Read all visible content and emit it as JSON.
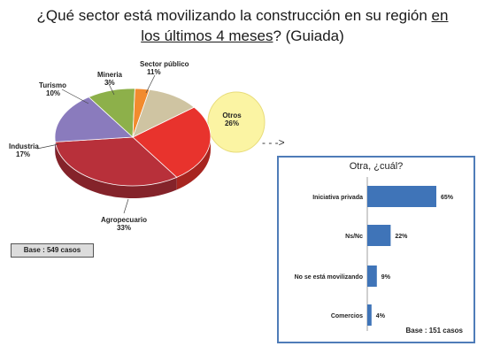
{
  "title": {
    "part1": "¿Qué sector está movilizando la construcción en su región ",
    "part2": "en",
    "part3": "los últimos 4 meses",
    "part4": "? (Guiada)"
  },
  "arrow": "- - ->",
  "base_main": "Base : 549 casos",
  "colors": {
    "agropecuario": "#b8303a",
    "industria": "#8a7bbd",
    "turismo": "#8db04a",
    "mineria": "#f28b2e",
    "sector_publico": "#cfc4a2",
    "otros": "#e8332d",
    "otros_highlight": "#fbf4a3",
    "bars": "#3f74b8",
    "panel_border": "#4f7cb8"
  },
  "chart_data": [
    {
      "type": "pie",
      "categories": [
        "Otros",
        "Agropecuario",
        "Industria",
        "Turismo",
        "Minería",
        "Sector público"
      ],
      "display_labels": [
        "Otros",
        "Agropecuario",
        "Industria",
        "Turismo",
        "Mineria",
        "Sector público"
      ],
      "values": [
        26,
        33,
        17,
        10,
        3,
        11
      ],
      "value_labels": [
        "26%",
        "33%",
        "17%",
        "10%",
        "3%",
        "11%"
      ],
      "base": "Base : 549 casos"
    },
    {
      "type": "bar",
      "orientation": "horizontal",
      "title": "Otra, ¿cuál?",
      "categories": [
        "Iniciativa privada",
        "Ns/Nc",
        "No se está movilizando",
        "Comercios"
      ],
      "values": [
        65,
        22,
        9,
        4
      ],
      "value_labels": [
        "65%",
        "22%",
        "9%",
        "4%"
      ],
      "xlim": [
        0,
        100
      ],
      "base": "Base : 151 casos"
    }
  ]
}
